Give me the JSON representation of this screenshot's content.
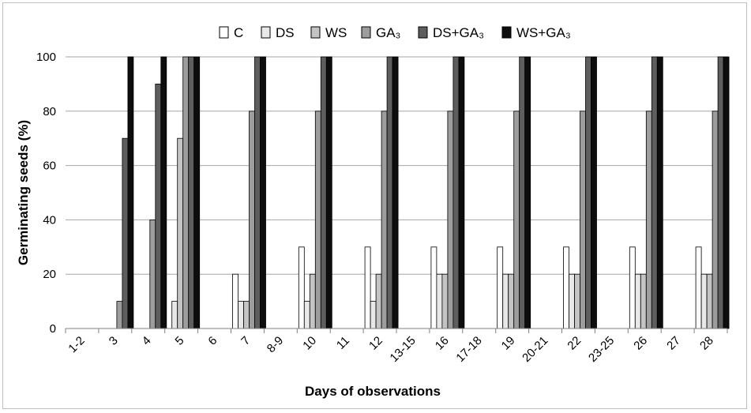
{
  "chart_data": {
    "type": "bar",
    "xlabel": "Days of observations",
    "ylabel": "Germinating seeds (%)",
    "ylim": [
      0,
      100
    ],
    "yticks": [
      0,
      20,
      40,
      60,
      80,
      100
    ],
    "grid": "horizontal",
    "legend_position": "top",
    "categories": [
      "1-2",
      "3",
      "4",
      "5",
      "6",
      "7",
      "8-9",
      "10",
      "11",
      "12",
      "13-15",
      "16",
      "17-18",
      "19",
      "20-21",
      "22",
      "23-25",
      "26",
      "27",
      "28"
    ],
    "series": [
      {
        "name": "C",
        "color": "#ffffff",
        "values": [
          0,
          0,
          0,
          0,
          0,
          20,
          0,
          30,
          0,
          30,
          0,
          30,
          0,
          30,
          0,
          30,
          0,
          30,
          0,
          30
        ]
      },
      {
        "name": "DS",
        "color": "#e8e8e8",
        "values": [
          0,
          0,
          0,
          10,
          0,
          10,
          0,
          10,
          0,
          10,
          0,
          20,
          0,
          20,
          0,
          20,
          0,
          20,
          0,
          20
        ]
      },
      {
        "name": "WS",
        "color": "#c4c4c4",
        "values": [
          0,
          0,
          0,
          70,
          0,
          10,
          0,
          20,
          0,
          20,
          0,
          20,
          0,
          20,
          0,
          20,
          0,
          20,
          0,
          20
        ]
      },
      {
        "name": "GA₃",
        "color": "#9d9d9d",
        "values": [
          0,
          10,
          40,
          100,
          0,
          80,
          0,
          80,
          0,
          80,
          0,
          80,
          0,
          80,
          0,
          80,
          0,
          80,
          0,
          80
        ]
      },
      {
        "name": "DS+GA₃",
        "color": "#5e5e5e",
        "values": [
          0,
          70,
          90,
          100,
          0,
          100,
          0,
          100,
          0,
          100,
          0,
          100,
          0,
          100,
          0,
          100,
          0,
          100,
          0,
          100
        ]
      },
      {
        "name": "WS+GA₃",
        "color": "#0d0d0d",
        "values": [
          0,
          100,
          100,
          100,
          0,
          100,
          0,
          100,
          0,
          100,
          0,
          100,
          0,
          100,
          0,
          100,
          0,
          100,
          0,
          100
        ]
      }
    ]
  }
}
